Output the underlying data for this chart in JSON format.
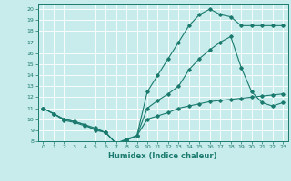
{
  "xlabel": "Humidex (Indice chaleur)",
  "xlim": [
    -0.5,
    23.5
  ],
  "ylim": [
    8,
    20.5
  ],
  "yticks": [
    8,
    9,
    10,
    11,
    12,
    13,
    14,
    15,
    16,
    17,
    18,
    19,
    20
  ],
  "xticks": [
    0,
    1,
    2,
    3,
    4,
    5,
    6,
    7,
    8,
    9,
    10,
    11,
    12,
    13,
    14,
    15,
    16,
    17,
    18,
    19,
    20,
    21,
    22,
    23
  ],
  "bg_color": "#c8ecec",
  "grid_color": "#ffffff",
  "line_color": "#1a7a6e",
  "line1_x": [
    0,
    1,
    2,
    3,
    4,
    5,
    6,
    7,
    8,
    9,
    10,
    11,
    12,
    13,
    14,
    15,
    16,
    17,
    18,
    19,
    20,
    21,
    22,
    23
  ],
  "line1_y": [
    11,
    10.5,
    10.0,
    9.8,
    9.5,
    9.2,
    8.8,
    7.8,
    8.2,
    8.5,
    10.0,
    10.3,
    10.6,
    11.0,
    11.2,
    11.4,
    11.6,
    11.7,
    11.8,
    11.9,
    12.0,
    12.1,
    12.2,
    12.3
  ],
  "line2_x": [
    0,
    1,
    2,
    3,
    4,
    5,
    6,
    7,
    8,
    9,
    10,
    11,
    12,
    13,
    14,
    15,
    16,
    17,
    18,
    19,
    20,
    21,
    22,
    23
  ],
  "line2_y": [
    11,
    10.5,
    9.9,
    9.7,
    9.4,
    9.1,
    8.8,
    7.8,
    8.1,
    8.5,
    11.0,
    11.7,
    12.3,
    13.0,
    14.5,
    15.5,
    16.3,
    17.0,
    17.5,
    14.7,
    12.5,
    11.5,
    11.2,
    11.5
  ],
  "line3_x": [
    0,
    1,
    2,
    3,
    4,
    5,
    6,
    7,
    8,
    9,
    10,
    11,
    12,
    13,
    14,
    15,
    16,
    17,
    18,
    19,
    20,
    21,
    22,
    23
  ],
  "line3_y": [
    11,
    10.5,
    10.0,
    9.8,
    9.5,
    9.0,
    8.8,
    7.8,
    8.1,
    8.5,
    12.5,
    14.0,
    15.5,
    17.0,
    18.5,
    19.5,
    20.0,
    19.5,
    19.3,
    18.5,
    18.5,
    18.5,
    18.5,
    18.5
  ]
}
